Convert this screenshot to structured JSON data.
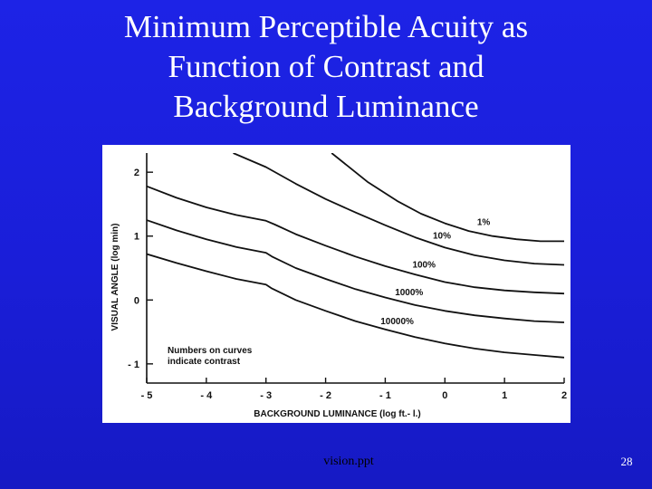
{
  "slide": {
    "title_lines": [
      "Minimum Perceptible Acuity as",
      "Function of Contrast and",
      "Background Luminance"
    ],
    "footer": "vision.ppt",
    "page_number": "28"
  },
  "chart_data": {
    "type": "line",
    "xlabel": "BACKGROUND LUMINANCE (log ft.- l.)",
    "ylabel": "VISUAL ANGLE (log min)",
    "xlim": [
      -5,
      2
    ],
    "ylim": [
      -1.3,
      2.3
    ],
    "x_ticks": [
      -5,
      -4,
      -3,
      -2,
      -1,
      0,
      1,
      2
    ],
    "x_tick_labels": [
      "- 5",
      "- 4",
      "- 3",
      "- 2",
      "- 1",
      "0",
      "1",
      "2"
    ],
    "y_ticks": [
      2,
      1,
      0,
      -1
    ],
    "y_tick_labels": [
      "2",
      "1",
      "0",
      "- 1"
    ],
    "grid": false,
    "annotation": [
      "Numbers on curves",
      "indicate contrast"
    ],
    "series": [
      {
        "name": "1%",
        "x": [
          -1.9,
          -1.3,
          -0.8,
          -0.4,
          0,
          0.4,
          0.8,
          1.2,
          1.6,
          2
        ],
        "y": [
          2.3,
          1.85,
          1.55,
          1.35,
          1.2,
          1.08,
          1.0,
          0.95,
          0.92,
          0.92
        ]
      },
      {
        "name": "10%",
        "x": [
          -3.55,
          -3.0,
          -2.5,
          -2.0,
          -1.5,
          -1.0,
          -0.5,
          0,
          0.5,
          1.0,
          1.5,
          2
        ],
        "y": [
          2.3,
          2.08,
          1.82,
          1.58,
          1.37,
          1.17,
          0.98,
          0.82,
          0.7,
          0.62,
          0.57,
          0.55
        ]
      },
      {
        "name": "100%",
        "x": [
          -5,
          -4.5,
          -4,
          -3.5,
          -3.0,
          -2.85,
          -2.5,
          -2.0,
          -1.5,
          -1.0,
          -0.5,
          0,
          0.5,
          1.0,
          1.5,
          2
        ],
        "y": [
          1.78,
          1.6,
          1.45,
          1.33,
          1.24,
          1.18,
          1.03,
          0.85,
          0.68,
          0.53,
          0.4,
          0.28,
          0.2,
          0.15,
          0.12,
          0.1
        ]
      },
      {
        "name": "1000%",
        "x": [
          -5,
          -4.5,
          -4,
          -3.5,
          -3.0,
          -2.9,
          -2.5,
          -2.0,
          -1.5,
          -1.0,
          -0.5,
          0,
          0.5,
          1.0,
          1.5,
          2
        ],
        "y": [
          1.25,
          1.09,
          0.95,
          0.83,
          0.74,
          0.68,
          0.5,
          0.33,
          0.17,
          0.04,
          -0.08,
          -0.17,
          -0.24,
          -0.29,
          -0.33,
          -0.35
        ]
      },
      {
        "name": "10000%",
        "x": [
          -5,
          -4.5,
          -4,
          -3.5,
          -3.0,
          -2.9,
          -2.5,
          -2.0,
          -1.5,
          -1.0,
          -0.5,
          0,
          0.5,
          1.0,
          1.5,
          2
        ],
        "y": [
          0.72,
          0.58,
          0.45,
          0.33,
          0.24,
          0.18,
          0.0,
          -0.17,
          -0.33,
          -0.46,
          -0.58,
          -0.68,
          -0.76,
          -0.82,
          -0.86,
          -0.9
        ]
      }
    ]
  }
}
